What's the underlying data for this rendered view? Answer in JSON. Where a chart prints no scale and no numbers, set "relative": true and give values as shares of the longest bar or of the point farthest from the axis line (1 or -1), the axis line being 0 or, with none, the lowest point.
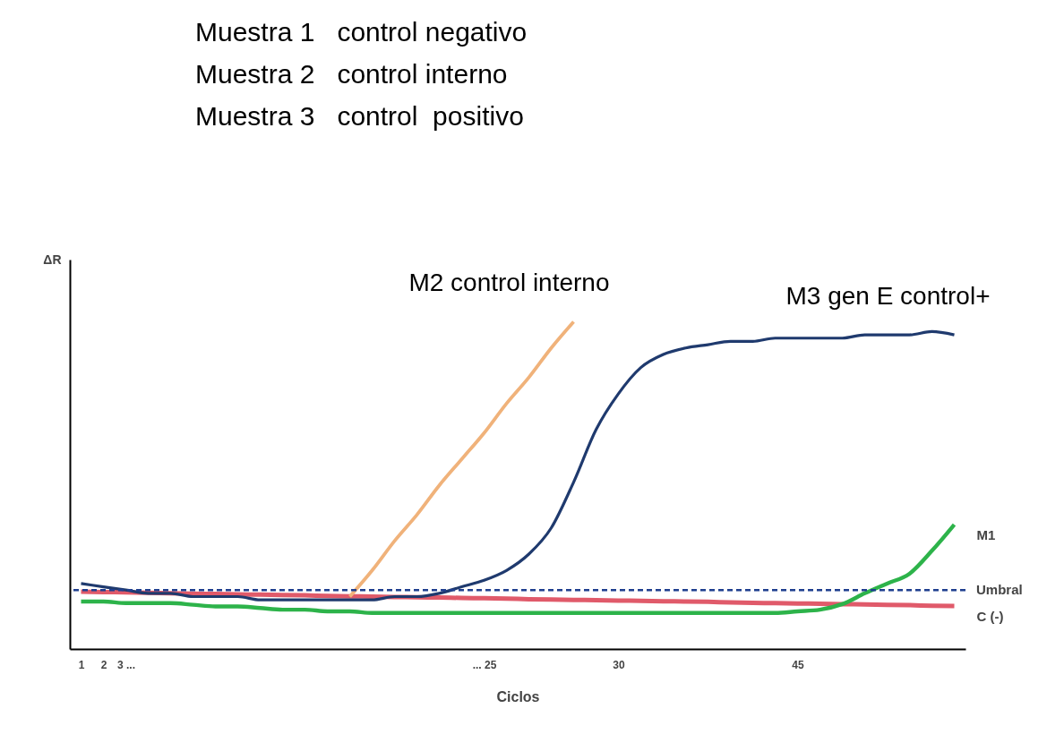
{
  "chart_data": {
    "type": "line",
    "relative": true,
    "xlabel": "Ciclos",
    "ylabel": "ΔR",
    "annotations": [
      "Muestra 1   control negativo",
      "Muestra 2   control interno",
      "Muestra 3   control  positivo"
    ],
    "categories": [
      "1",
      "2",
      "3 ...",
      null,
      null,
      null,
      null,
      null,
      null,
      null,
      null,
      null,
      null,
      null,
      null,
      null,
      null,
      null,
      "... 25",
      null,
      null,
      null,
      null,
      null,
      "30",
      null,
      null,
      null,
      null,
      null,
      null,
      null,
      "45",
      null,
      null,
      null,
      null,
      null,
      null,
      null
    ],
    "series": [
      {
        "name": "C (-)",
        "color": "#e05a6a",
        "values": [
          0.175,
          0.174,
          0.173,
          0.172,
          0.17,
          0.169,
          0.168,
          0.167,
          0.166,
          0.165,
          0.164,
          0.162,
          0.161,
          0.16,
          0.159,
          0.158,
          0.157,
          0.156,
          0.155,
          0.154,
          0.152,
          0.151,
          0.15,
          0.149,
          0.148,
          0.147,
          0.146,
          0.145,
          0.144,
          0.142,
          0.141,
          0.14,
          0.139,
          0.138,
          0.137,
          0.136,
          0.135,
          0.134,
          0.132,
          0.131
        ]
      },
      {
        "name": "M1",
        "color": "#2db34a",
        "values": [
          0.145,
          0.145,
          0.14,
          0.14,
          0.14,
          0.135,
          0.13,
          0.13,
          0.125,
          0.12,
          0.12,
          0.115,
          0.115,
          0.11,
          0.11,
          0.11,
          0.11,
          0.11,
          0.11,
          0.11,
          0.11,
          0.11,
          0.11,
          0.11,
          0.11,
          0.11,
          0.11,
          0.11,
          0.11,
          0.11,
          0.11,
          0.11,
          0.115,
          0.12,
          0.137,
          0.17,
          0.2,
          0.23,
          0.3,
          0.38
        ]
      },
      {
        "name": "M2 control interno",
        "color": "#f0b27a",
        "values": [
          null,
          null,
          null,
          null,
          null,
          null,
          null,
          null,
          null,
          null,
          null,
          null,
          0.16,
          0.24,
          0.33,
          0.41,
          0.5,
          0.58,
          0.66,
          0.75,
          0.83,
          0.92,
          1.0,
          null,
          null,
          null,
          null,
          null,
          null,
          null,
          null,
          null,
          null,
          null,
          null,
          null,
          null,
          null,
          null,
          null
        ]
      },
      {
        "name": "M3 gen E control+",
        "color": "#1f3a6e",
        "values": [
          0.2,
          0.19,
          0.18,
          0.17,
          0.17,
          0.16,
          0.16,
          0.16,
          0.15,
          0.15,
          0.15,
          0.15,
          0.15,
          0.15,
          0.16,
          0.16,
          0.17,
          0.19,
          0.21,
          0.24,
          0.29,
          0.37,
          0.51,
          0.67,
          0.78,
          0.86,
          0.9,
          0.92,
          0.93,
          0.94,
          0.94,
          0.95,
          0.95,
          0.95,
          0.95,
          0.96,
          0.96,
          0.96,
          0.97,
          0.96
        ]
      }
    ],
    "ref_lines": [
      {
        "axis": "y",
        "value": 0.18,
        "label": "Umbral",
        "color": "#1f3f8f",
        "line_style": "dashed"
      }
    ]
  }
}
